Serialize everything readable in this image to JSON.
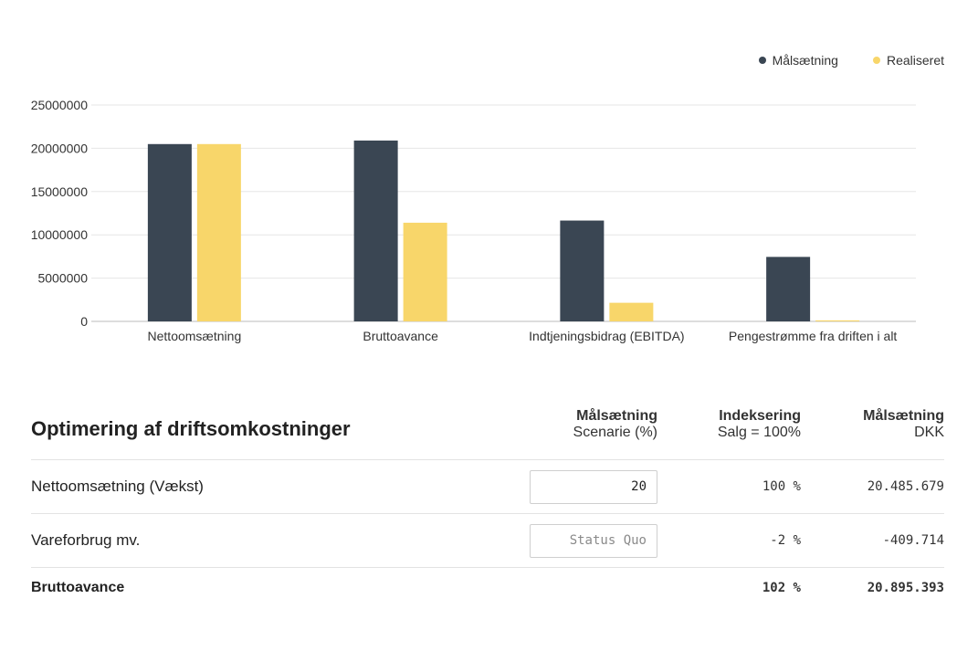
{
  "colors": {
    "target": "#3a4653",
    "actual": "#f8d66a"
  },
  "legend": [
    {
      "label": "Målsætning",
      "color": "#3a4653"
    },
    {
      "label": "Realiseret",
      "color": "#f8d66a"
    }
  ],
  "chart_data": {
    "type": "bar",
    "categories": [
      "Nettoomsætning",
      "Bruttoavance",
      "Indtjeningsbidrag (EBITDA)",
      "Pengestrømme fra driften i alt"
    ],
    "series": [
      {
        "name": "Målsætning",
        "values": [
          20485679,
          20895393,
          11650000,
          7450000
        ]
      },
      {
        "name": "Realiseret",
        "values": [
          20485679,
          11400000,
          2150000,
          120000
        ]
      }
    ],
    "ylim": [
      0,
      25000000
    ],
    "yticks": [
      "0",
      "5000000",
      "10000000",
      "15000000",
      "20000000",
      "25000000"
    ],
    "grid": true,
    "legend_position": "top-right"
  },
  "table": {
    "title": "Optimering af driftsomkostninger",
    "headers": [
      {
        "top": "Målsætning",
        "bottom": "Scenarie (%)"
      },
      {
        "top": "Indeksering",
        "bottom": "Salg = 100%"
      },
      {
        "top": "Målsætning",
        "bottom": "DKK"
      }
    ],
    "rows": [
      {
        "name": "Nettoomsætning (Vækst)",
        "input_value": "20",
        "input_placeholder": "",
        "index": "100 %",
        "amount": "20.485.679"
      },
      {
        "name": "Vareforbrug mv.",
        "input_value": "",
        "input_placeholder": "Status Quo",
        "index": "-2 %",
        "amount": "-409.714"
      }
    ],
    "total": {
      "name": "Bruttoavance",
      "index": "102 %",
      "amount": "20.895.393"
    }
  }
}
